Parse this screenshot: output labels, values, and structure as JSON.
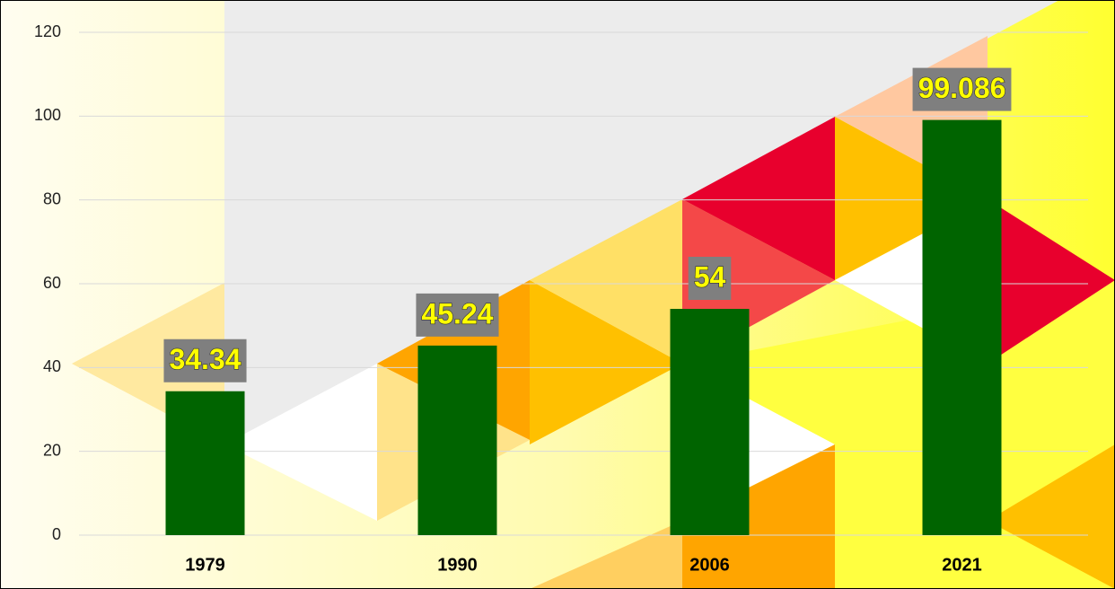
{
  "chart_data": {
    "type": "bar",
    "categories": [
      "1979",
      "1990",
      "2006",
      "2021"
    ],
    "values": [
      34.34,
      45.24,
      54,
      99.086
    ],
    "color": "#006400",
    "ylim": [
      0,
      120
    ],
    "yticks": [
      0,
      20,
      40,
      60,
      80,
      100,
      120
    ],
    "grid": true
  }
}
